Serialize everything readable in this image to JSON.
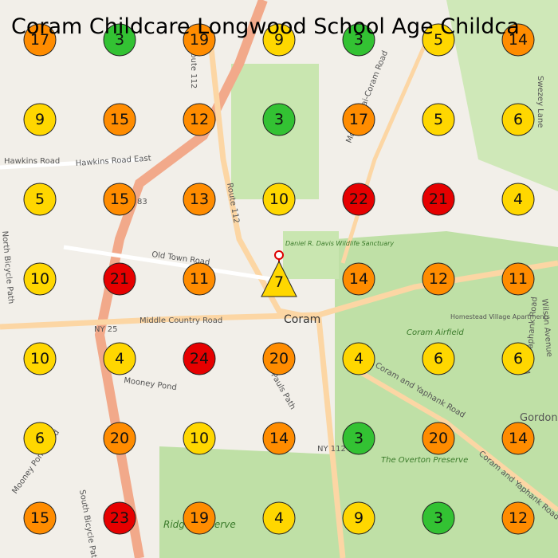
{
  "title": "Coram Childcare Longwood School Age Childca",
  "map_labels": {
    "town": "Coram",
    "route112_north": "Route 112",
    "route112_mid": "Route 112",
    "ny25": "NY 25",
    "middle_country": "Middle Country Road",
    "old_town": "Old Town Road",
    "hawkins_east": "Hawkins Road East",
    "hawkins": "Hawkins Road",
    "mooney_pond": "Mooney Pond",
    "mooney_pond_road": "Mooney Pond Road",
    "pauls_path": "Pauls Path",
    "ny112": "NY 112",
    "coram_yaphank": "Coram and Yaphank Road",
    "coram_yaphank_east": "Coram and Yaphank Road",
    "airfield": "Coram Airfield",
    "overton": "The Overton Preserve",
    "sanctuary": "Daniel R. Davis Wildlife Sanctuary",
    "homestead": "Homestead Village Apartments",
    "mount_sinai": "Mount Sinai-Coram Road",
    "north_bicycle": "North Bicycle Path",
    "south_bicycle": "South Bicycle Path",
    "wilson": "Wilson Avenue",
    "west_yaphank": "West Yaphank Road",
    "swezey": "Swezey Lane",
    "gordon": "Gordon Heights",
    "ridge": "Ridge Preserve",
    "route83": "83"
  },
  "marker": {
    "value": 7,
    "color": "#ffd700"
  },
  "cells": [
    [
      {
        "value": 17,
        "color": "#ff8c00"
      },
      {
        "value": 3,
        "color": "#33c233"
      },
      {
        "value": 19,
        "color": "#ff8c00"
      },
      {
        "value": 9,
        "color": "#ffd700"
      },
      {
        "value": 3,
        "color": "#33c233"
      },
      {
        "value": 5,
        "color": "#ffd700"
      },
      {
        "value": 14,
        "color": "#ff8c00"
      }
    ],
    [
      {
        "value": 9,
        "color": "#ffd700"
      },
      {
        "value": 15,
        "color": "#ff8c00"
      },
      {
        "value": 12,
        "color": "#ff8c00"
      },
      {
        "value": 3,
        "color": "#33c233"
      },
      {
        "value": 17,
        "color": "#ff8c00"
      },
      {
        "value": 5,
        "color": "#ffd700"
      },
      {
        "value": 6,
        "color": "#ffd700"
      }
    ],
    [
      {
        "value": 5,
        "color": "#ffd700"
      },
      {
        "value": 15,
        "color": "#ff8c00"
      },
      {
        "value": 13,
        "color": "#ff8c00"
      },
      {
        "value": 10,
        "color": "#ffd700"
      },
      {
        "value": 22,
        "color": "#e60000"
      },
      {
        "value": 21,
        "color": "#e60000"
      },
      {
        "value": 4,
        "color": "#ffd700"
      }
    ],
    [
      {
        "value": 10,
        "color": "#ffd700"
      },
      {
        "value": 21,
        "color": "#e60000"
      },
      {
        "value": 11,
        "color": "#ff8c00"
      },
      null,
      {
        "value": 14,
        "color": "#ff8c00"
      },
      {
        "value": 12,
        "color": "#ff8c00"
      },
      {
        "value": 11,
        "color": "#ff8c00"
      }
    ],
    [
      {
        "value": 10,
        "color": "#ffd700"
      },
      {
        "value": 4,
        "color": "#ffd700"
      },
      {
        "value": 24,
        "color": "#e60000"
      },
      {
        "value": 20,
        "color": "#ff8c00"
      },
      {
        "value": 4,
        "color": "#ffd700"
      },
      {
        "value": 6,
        "color": "#ffd700"
      },
      {
        "value": 6,
        "color": "#ffd700"
      }
    ],
    [
      {
        "value": 6,
        "color": "#ffd700"
      },
      {
        "value": 20,
        "color": "#ff8c00"
      },
      {
        "value": 10,
        "color": "#ffd700"
      },
      {
        "value": 14,
        "color": "#ff8c00"
      },
      {
        "value": 3,
        "color": "#33c233"
      },
      {
        "value": 20,
        "color": "#ff8c00"
      },
      {
        "value": 14,
        "color": "#ff8c00"
      }
    ],
    [
      {
        "value": 15,
        "color": "#ff8c00"
      },
      {
        "value": 23,
        "color": "#e60000"
      },
      {
        "value": 19,
        "color": "#ff8c00"
      },
      {
        "value": 4,
        "color": "#ffd700"
      },
      {
        "value": 9,
        "color": "#ffd700"
      },
      {
        "value": 3,
        "color": "#33c233"
      },
      {
        "value": 12,
        "color": "#ff8c00"
      }
    ]
  ]
}
